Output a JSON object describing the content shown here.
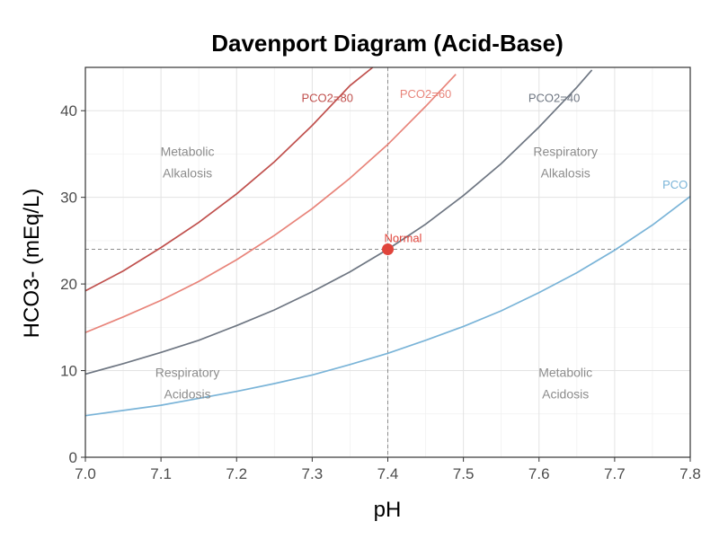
{
  "chart_data": {
    "type": "line",
    "title": "Davenport Diagram (Acid-Base)",
    "xlabel": "pH",
    "ylabel": "HCO3- (mEq/L)",
    "xlim": [
      7.0,
      7.8
    ],
    "ylim": [
      0,
      45
    ],
    "x_ticks": [
      "7.0",
      "7.1",
      "7.2",
      "7.3",
      "7.4",
      "7.5",
      "7.6",
      "7.7",
      "7.8"
    ],
    "y_ticks": [
      "0",
      "10",
      "20",
      "30",
      "40"
    ],
    "grid": true,
    "series": [
      {
        "name": "PCO2=80",
        "color": "#c0504d",
        "pco2": 80,
        "x": [
          7.0,
          7.05,
          7.1,
          7.15,
          7.2,
          7.25,
          7.3,
          7.35,
          7.38
        ],
        "y": [
          19.2,
          21.5,
          24.2,
          27.1,
          30.4,
          34.1,
          38.3,
          42.9,
          45.0
        ]
      },
      {
        "name": "PCO2=60",
        "color": "#e8847a",
        "pco2": 60,
        "x": [
          7.0,
          7.05,
          7.1,
          7.15,
          7.2,
          7.25,
          7.3,
          7.35,
          7.4,
          7.45,
          7.49
        ],
        "y": [
          14.4,
          16.2,
          18.1,
          20.3,
          22.8,
          25.6,
          28.7,
          32.2,
          36.1,
          40.5,
          44.2
        ]
      },
      {
        "name": "PCO2=40",
        "color": "#6e7682",
        "pco2": 40,
        "x": [
          7.0,
          7.05,
          7.1,
          7.15,
          7.2,
          7.25,
          7.3,
          7.35,
          7.4,
          7.45,
          7.5,
          7.55,
          7.6,
          7.65,
          7.67
        ],
        "y": [
          9.6,
          10.8,
          12.1,
          13.5,
          15.2,
          17.0,
          19.1,
          21.4,
          24.0,
          26.9,
          30.2,
          33.9,
          38.1,
          42.7,
          44.7
        ]
      },
      {
        "name": "PCO",
        "color": "#7ab4d8",
        "pco2": 20,
        "x": [
          7.0,
          7.05,
          7.1,
          7.15,
          7.2,
          7.25,
          7.3,
          7.35,
          7.4,
          7.45,
          7.5,
          7.55,
          7.6,
          7.65,
          7.7,
          7.75,
          7.8
        ],
        "y": [
          4.8,
          5.4,
          6.0,
          6.8,
          7.6,
          8.5,
          9.5,
          10.7,
          12.0,
          13.5,
          15.1,
          16.9,
          19.0,
          21.3,
          23.9,
          26.8,
          30.1
        ]
      }
    ],
    "reference_lines": {
      "x": 7.4,
      "y": 24
    },
    "points": [
      {
        "label": "Normal",
        "x": 7.4,
        "y": 24,
        "color": "#e0443b"
      }
    ],
    "annotations": [
      {
        "lines": [
          "Metabolic",
          "Alkalosis"
        ],
        "x": 7.135,
        "y": 34.8
      },
      {
        "lines": [
          "Respiratory",
          "Alkalosis"
        ],
        "x": 7.635,
        "y": 34.8
      },
      {
        "lines": [
          "Respiratory",
          "Acidosis"
        ],
        "x": 7.135,
        "y": 9.3
      },
      {
        "lines": [
          "Metabolic",
          "Acidosis"
        ],
        "x": 7.635,
        "y": 9.3
      }
    ],
    "curve_labels": [
      {
        "text": "PCO2=80",
        "series": 0,
        "x": 7.32,
        "y": 41.0
      },
      {
        "text": "PCO2=60",
        "series": 1,
        "x": 7.45,
        "y": 41.5
      },
      {
        "text": "PCO2=40",
        "series": 2,
        "x": 7.62,
        "y": 41.0
      },
      {
        "text": "PCO",
        "series": 3,
        "x": 7.78,
        "y": 31.0
      }
    ]
  }
}
